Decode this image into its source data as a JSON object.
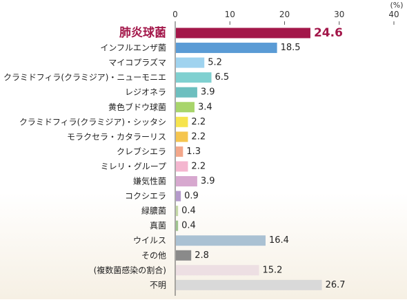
{
  "chart_data": {
    "type": "bar",
    "orientation": "horizontal",
    "unit_label": "(%)",
    "xlim": [
      0,
      40
    ],
    "xticks": [
      0,
      10,
      20,
      30,
      40
    ],
    "grid": false,
    "legend": "none",
    "categories": [
      "肺炎球菌",
      "インフルエンザ菌",
      "マイコプラズマ",
      "クラミドフィラ(クラミジア)・ニューモニエ",
      "レジオネラ",
      "黄色ブドウ球菌",
      "クラミドフィラ(クラミジア)・シッタシ",
      "モラクセラ・カタラーリス",
      "クレブシエラ",
      "ミレリ・グループ",
      "嫌気性菌",
      "コクシエラ",
      "緑膿菌",
      "真菌",
      "ウイルス",
      "その他",
      "(複数菌感染の割合)",
      "不明"
    ],
    "values": [
      24.6,
      18.5,
      5.2,
      6.5,
      3.9,
      3.4,
      2.2,
      2.2,
      1.3,
      2.2,
      3.9,
      0.9,
      0.4,
      0.4,
      16.4,
      2.8,
      15.2,
      26.7
    ],
    "value_labels": [
      "24.6",
      "18.5",
      "5.2",
      "6.5",
      "3.9",
      "3.4",
      "2.2",
      "2.2",
      "1.3",
      "2.2",
      "3.9",
      "0.9",
      "0.4",
      "0.4",
      "16.4",
      "2.8",
      "15.2",
      "26.7"
    ],
    "colors": [
      "#a3174a",
      "#5a9bd5",
      "#9fd3ef",
      "#7fd0d0",
      "#6dbfbf",
      "#a8d56b",
      "#f6e44d",
      "#f5c54e",
      "#f3a78a",
      "#f4b6cf",
      "#d7a8cf",
      "#b49acb",
      "#c4d8a6",
      "#9fc48e",
      "#aac1d3",
      "#8a8a8a",
      "#eddfe3",
      "#d9d9d9"
    ],
    "highlight_index": 0,
    "highlight_color": "#a3174a"
  }
}
